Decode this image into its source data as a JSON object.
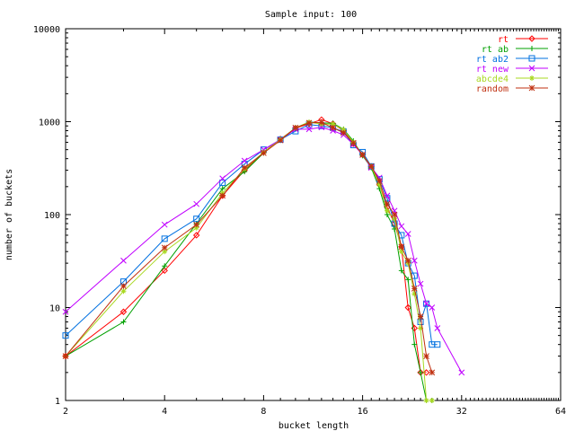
{
  "chart_data": {
    "type": "line",
    "title": "Sample input: 100",
    "xlabel": "bucket length",
    "ylabel": "number of buckets",
    "x_scale": "log2",
    "y_scale": "log10",
    "xlim": [
      2,
      64
    ],
    "ylim": [
      1,
      10000
    ],
    "x_ticks": [
      {
        "v": 2,
        "label": "2"
      },
      {
        "v": 4,
        "label": "4"
      },
      {
        "v": 8,
        "label": "8"
      },
      {
        "v": 16,
        "label": "16"
      },
      {
        "v": 32,
        "label": "32"
      },
      {
        "v": 64,
        "label": "64"
      }
    ],
    "y_ticks": [
      {
        "v": 1,
        "label": "1"
      },
      {
        "v": 10,
        "label": "10"
      },
      {
        "v": 100,
        "label": "100"
      },
      {
        "v": 1000,
        "label": "1000"
      },
      {
        "v": 10000,
        "label": "10000"
      }
    ],
    "grid": false,
    "legend_position": "top-right",
    "series": [
      {
        "name": "rt",
        "color": "#ff0000",
        "marker": "diamond",
        "points": [
          [
            2,
            3
          ],
          [
            3,
            9
          ],
          [
            4,
            25
          ],
          [
            5,
            60
          ],
          [
            6,
            160
          ],
          [
            7,
            300
          ],
          [
            8,
            470
          ],
          [
            9,
            650
          ],
          [
            10,
            850
          ],
          [
            11,
            950
          ],
          [
            12,
            1050
          ],
          [
            13,
            950
          ],
          [
            14,
            800
          ],
          [
            15,
            580
          ],
          [
            16,
            440
          ],
          [
            17,
            330
          ],
          [
            18,
            210
          ],
          [
            19,
            120
          ],
          [
            20,
            80
          ],
          [
            21,
            45
          ],
          [
            22,
            10
          ],
          [
            23,
            6
          ],
          [
            24,
            2
          ],
          [
            25,
            2
          ]
        ]
      },
      {
        "name": "rt ab",
        "color": "#00a000",
        "marker": "plus",
        "points": [
          [
            2,
            3
          ],
          [
            3,
            7
          ],
          [
            4,
            28
          ],
          [
            5,
            80
          ],
          [
            6,
            190
          ],
          [
            7,
            290
          ],
          [
            8,
            460
          ],
          [
            9,
            640
          ],
          [
            10,
            860
          ],
          [
            11,
            990
          ],
          [
            12,
            970
          ],
          [
            13,
            960
          ],
          [
            14,
            830
          ],
          [
            15,
            620
          ],
          [
            16,
            430
          ],
          [
            17,
            320
          ],
          [
            18,
            190
          ],
          [
            19,
            100
          ],
          [
            20,
            70
          ],
          [
            21,
            25
          ],
          [
            22,
            20
          ],
          [
            23,
            4
          ],
          [
            24,
            2
          ],
          [
            25,
            1
          ],
          [
            26,
            1
          ]
        ]
      },
      {
        "name": "rt ab2",
        "color": "#0070e0",
        "marker": "square",
        "points": [
          [
            2,
            5
          ],
          [
            3,
            19
          ],
          [
            4,
            55
          ],
          [
            5,
            90
          ],
          [
            6,
            220
          ],
          [
            7,
            350
          ],
          [
            8,
            500
          ],
          [
            9,
            640
          ],
          [
            10,
            790
          ],
          [
            11,
            930
          ],
          [
            12,
            900
          ],
          [
            13,
            860
          ],
          [
            14,
            780
          ],
          [
            15,
            560
          ],
          [
            16,
            470
          ],
          [
            17,
            330
          ],
          [
            18,
            240
          ],
          [
            19,
            150
          ],
          [
            20,
            80
          ],
          [
            21,
            60
          ],
          [
            22,
            30
          ],
          [
            23,
            22
          ],
          [
            24,
            7
          ],
          [
            25,
            11
          ],
          [
            26,
            4
          ],
          [
            27,
            4
          ]
        ]
      },
      {
        "name": "rt new",
        "color": "#c000ff",
        "marker": "x",
        "points": [
          [
            2,
            9
          ],
          [
            3,
            32
          ],
          [
            4,
            78
          ],
          [
            5,
            130
          ],
          [
            6,
            245
          ],
          [
            7,
            380
          ],
          [
            8,
            500
          ],
          [
            9,
            640
          ],
          [
            10,
            830
          ],
          [
            11,
            830
          ],
          [
            12,
            870
          ],
          [
            13,
            800
          ],
          [
            14,
            720
          ],
          [
            15,
            570
          ],
          [
            16,
            440
          ],
          [
            17,
            320
          ],
          [
            18,
            250
          ],
          [
            19,
            160
          ],
          [
            20,
            110
          ],
          [
            21,
            75
          ],
          [
            22,
            62
          ],
          [
            23,
            32
          ],
          [
            24,
            18
          ],
          [
            25,
            11
          ],
          [
            26,
            10
          ],
          [
            27,
            6
          ],
          [
            32,
            2
          ]
        ]
      },
      {
        "name": "abcde4",
        "color": "#a8d820",
        "marker": "star",
        "points": [
          [
            2,
            3
          ],
          [
            3,
            15
          ],
          [
            4,
            40
          ],
          [
            5,
            72
          ],
          [
            6,
            170
          ],
          [
            7,
            310
          ],
          [
            8,
            470
          ],
          [
            9,
            640
          ],
          [
            10,
            860
          ],
          [
            11,
            990
          ],
          [
            12,
            940
          ],
          [
            13,
            940
          ],
          [
            14,
            820
          ],
          [
            15,
            600
          ],
          [
            16,
            440
          ],
          [
            17,
            330
          ],
          [
            18,
            210
          ],
          [
            19,
            110
          ],
          [
            20,
            90
          ],
          [
            21,
            40
          ],
          [
            22,
            30
          ],
          [
            23,
            14
          ],
          [
            24,
            6
          ],
          [
            25,
            1
          ],
          [
            26,
            1
          ]
        ]
      },
      {
        "name": "random",
        "color": "#c03010",
        "marker": "asterisk",
        "points": [
          [
            2,
            3
          ],
          [
            3,
            17
          ],
          [
            4,
            44
          ],
          [
            5,
            78
          ],
          [
            6,
            160
          ],
          [
            7,
            320
          ],
          [
            8,
            460
          ],
          [
            9,
            630
          ],
          [
            10,
            860
          ],
          [
            11,
            970
          ],
          [
            12,
            980
          ],
          [
            13,
            860
          ],
          [
            14,
            760
          ],
          [
            15,
            590
          ],
          [
            16,
            440
          ],
          [
            17,
            330
          ],
          [
            18,
            230
          ],
          [
            19,
            130
          ],
          [
            20,
            100
          ],
          [
            21,
            45
          ],
          [
            22,
            32
          ],
          [
            23,
            16
          ],
          [
            24,
            8
          ],
          [
            25,
            3
          ],
          [
            26,
            2
          ]
        ]
      }
    ]
  }
}
